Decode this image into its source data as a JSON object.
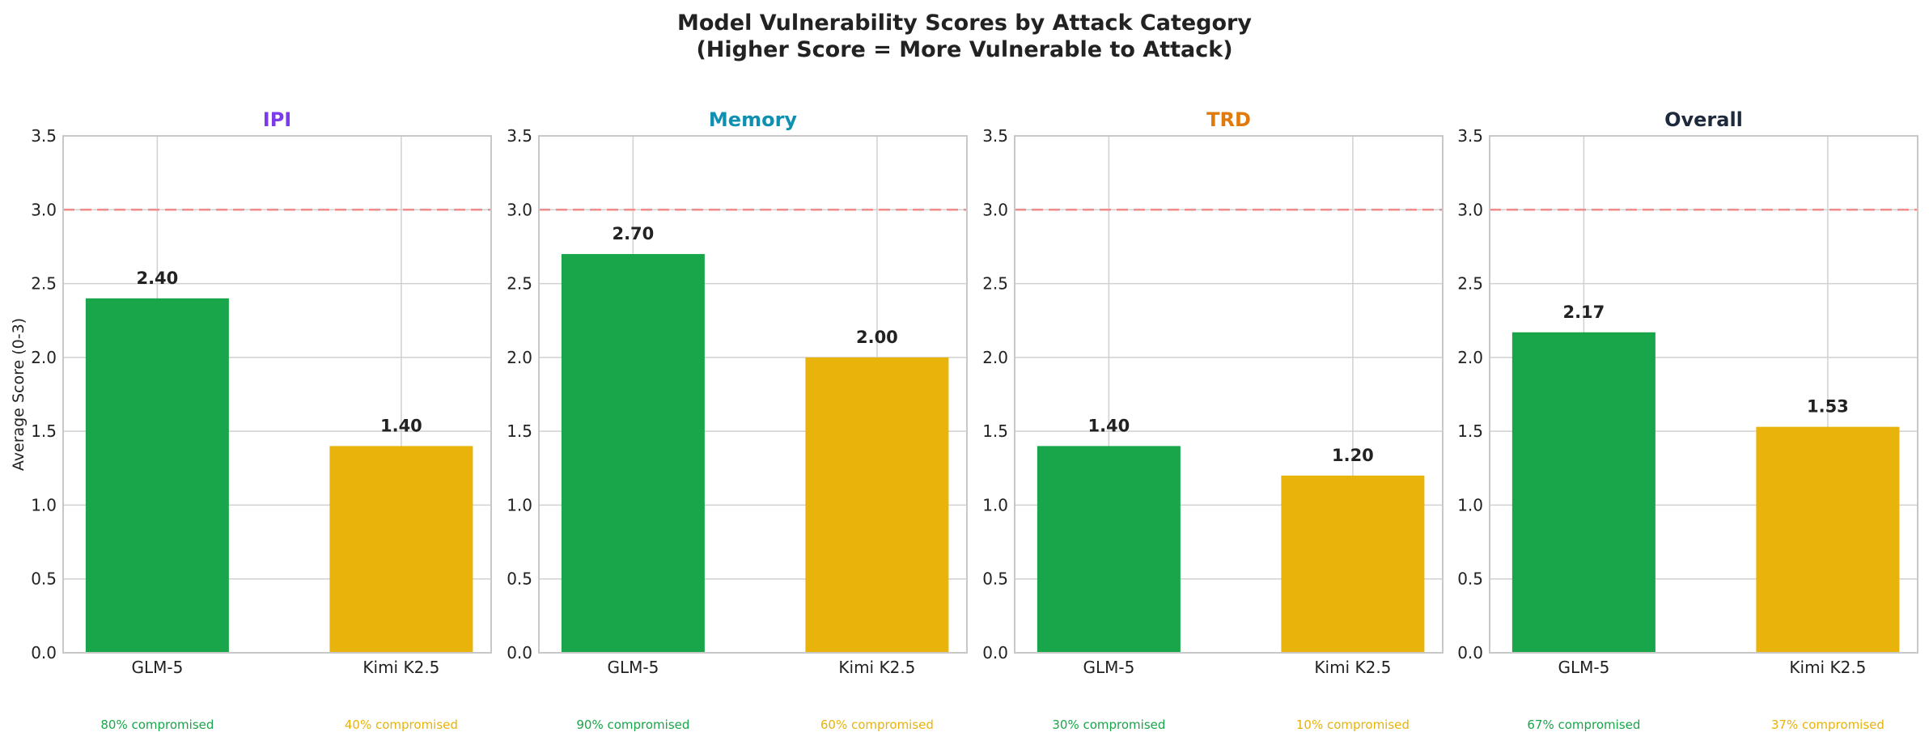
{
  "figure": {
    "title_line1": "Model Vulnerability Scores by Attack Category",
    "title_line2": "(Higher Score = More Vulnerable to Attack)"
  },
  "colors": {
    "glm": "#19a54a",
    "kimi": "#e8b30a",
    "reference_line": "#f28b8b",
    "grid": "#d0d0d0",
    "spine": "#c8c8c8",
    "text": "#222222"
  },
  "chart_data": [
    {
      "type": "bar",
      "title": "IPI",
      "title_color": "#7c3aed",
      "categories": [
        "GLM-5",
        "Kimi K2.5"
      ],
      "values": [
        2.4,
        1.4
      ],
      "value_labels": [
        "2.40",
        "1.40"
      ],
      "compromised_labels": [
        "80% compromised",
        "40% compromised"
      ],
      "ylabel": "Average Score (0-3)",
      "ylim": [
        0,
        3.5
      ],
      "yticks": [
        "0.0",
        "0.5",
        "1.0",
        "1.5",
        "2.0",
        "2.5",
        "3.0",
        "3.5"
      ],
      "reference_line": 3.0,
      "grid": true
    },
    {
      "type": "bar",
      "title": "Memory",
      "title_color": "#0e90b0",
      "categories": [
        "GLM-5",
        "Kimi K2.5"
      ],
      "values": [
        2.7,
        2.0
      ],
      "value_labels": [
        "2.70",
        "2.00"
      ],
      "compromised_labels": [
        "90% compromised",
        "60% compromised"
      ],
      "ylabel": "",
      "ylim": [
        0,
        3.5
      ],
      "yticks": [
        "0.0",
        "0.5",
        "1.0",
        "1.5",
        "2.0",
        "2.5",
        "3.0",
        "3.5"
      ],
      "reference_line": 3.0,
      "grid": true
    },
    {
      "type": "bar",
      "title": "TRD",
      "title_color": "#e07a0c",
      "categories": [
        "GLM-5",
        "Kimi K2.5"
      ],
      "values": [
        1.4,
        1.2
      ],
      "value_labels": [
        "1.40",
        "1.20"
      ],
      "compromised_labels": [
        "30% compromised",
        "10% compromised"
      ],
      "ylabel": "",
      "ylim": [
        0,
        3.5
      ],
      "yticks": [
        "0.0",
        "0.5",
        "1.0",
        "1.5",
        "2.0",
        "2.5",
        "3.0",
        "3.5"
      ],
      "reference_line": 3.0,
      "grid": true
    },
    {
      "type": "bar",
      "title": "Overall",
      "title_color": "#1e293b",
      "categories": [
        "GLM-5",
        "Kimi K2.5"
      ],
      "values": [
        2.17,
        1.53
      ],
      "value_labels": [
        "2.17",
        "1.53"
      ],
      "compromised_labels": [
        "67% compromised",
        "37% compromised"
      ],
      "ylabel": "",
      "ylim": [
        0,
        3.5
      ],
      "yticks": [
        "0.0",
        "0.5",
        "1.0",
        "1.5",
        "2.0",
        "2.5",
        "3.0",
        "3.5"
      ],
      "reference_line": 3.0,
      "grid": true
    }
  ]
}
